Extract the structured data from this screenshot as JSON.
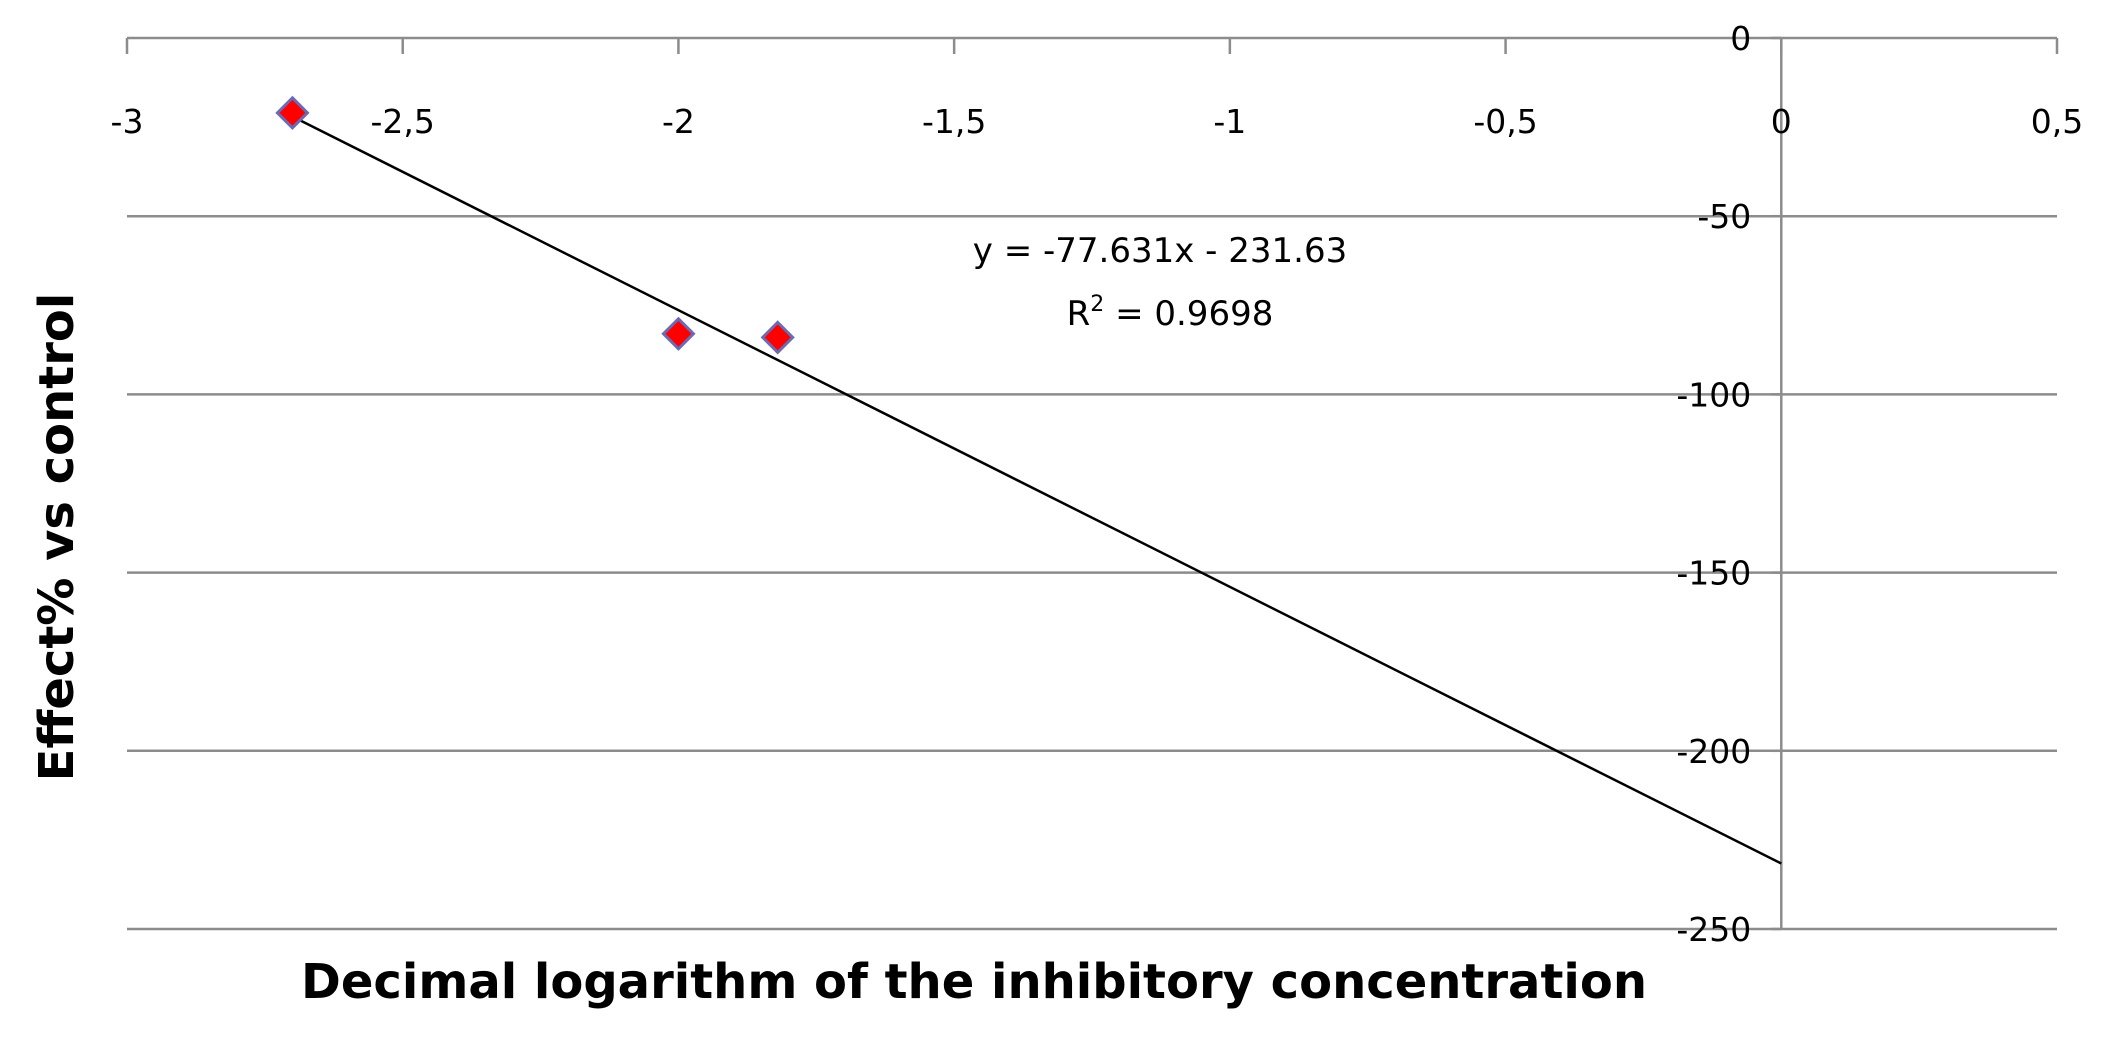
{
  "chart_data": {
    "type": "scatter",
    "xlabel": "Decimal logarithm of the inhibitory concentration",
    "ylabel": "Effect% vs control",
    "xlim": [
      -3,
      0.5
    ],
    "ylim": [
      -250,
      0
    ],
    "x_ticks": [
      -3,
      -2.5,
      -2,
      -1.5,
      -1,
      -0.5,
      0,
      0.5
    ],
    "x_tick_labels": [
      "-3",
      "-2,5",
      "-2",
      "-1,5",
      "-1",
      "-0,5",
      "0",
      "0,5"
    ],
    "y_ticks": [
      0,
      -50,
      -100,
      -150,
      -200,
      -250
    ],
    "y_tick_labels": [
      "0",
      "-50",
      "-100",
      "-150",
      "-200",
      "-250"
    ],
    "grid": "horizontal",
    "series": [
      {
        "marker": "diamond",
        "color": "#ff0000",
        "edge_color": "#6b6bb5",
        "points": [
          {
            "x": -2.7,
            "y": -21
          },
          {
            "x": -2.0,
            "y": -83
          },
          {
            "x": -1.82,
            "y": -84
          }
        ]
      }
    ],
    "trendline": {
      "type": "linear",
      "slope": -77.631,
      "intercept": -231.63,
      "x_range": [
        -2.7,
        0
      ],
      "color": "#000000",
      "equation": "y = -77.631x - 231.63",
      "r2_prefix": "R",
      "r2_sup": "2",
      "r2_value": " = 0.9698"
    }
  }
}
